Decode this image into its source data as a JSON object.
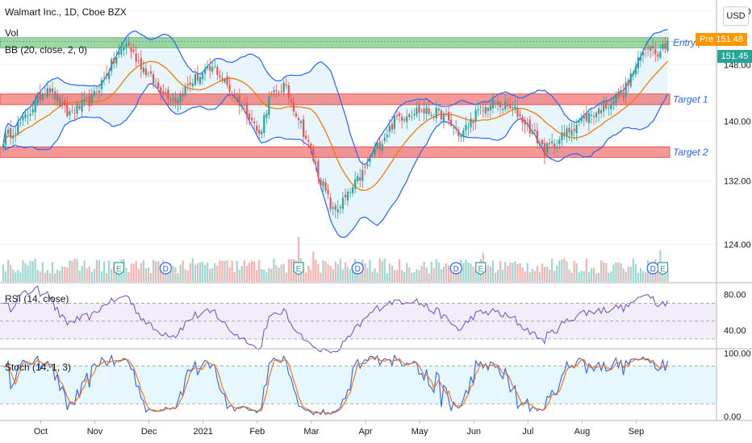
{
  "header": {
    "symbol_line": "Walmart Inc., 1D, Cboe BZX",
    "vol_label": "Vol",
    "bb_label": "BB (20, close, 2, 0)",
    "currency_button": "USD"
  },
  "price_badges": {
    "pre_label": "Pre",
    "pre_value": "151.48",
    "last_value": "151.45"
  },
  "indicators": {
    "rsi_label": "RSI (14, close)",
    "stoch_label": "Stoch (14, 1, 3)"
  },
  "colors": {
    "up": "#26a69a",
    "down": "#ef5350",
    "bb_band": "#2962ff",
    "bb_basis": "#f57c00",
    "bb_fill": "#e3f2fd",
    "rsi_line": "#7e57c2",
    "rsi_band": "#ede7f6",
    "stoch_k": "#2962ff",
    "stoch_d": "#ff6d00",
    "stoch_band": "#e1f5fe",
    "entry_zone": "#81c784",
    "target_zone": "#ef5350",
    "annotation_text": "#2962ff"
  },
  "chart_data": [
    {
      "type": "candlestick",
      "symbol": "Walmart Inc.",
      "interval": "1D",
      "exchange": "Cboe BZX",
      "x_ticks": [
        "Oct",
        "Nov",
        "Dec",
        "2021",
        "Feb",
        "Mar",
        "Apr",
        "May",
        "Jun",
        "Jul",
        "Aug",
        "Sep"
      ],
      "y_ticks": [
        156.0,
        148.0,
        140.0,
        132.0,
        124.0
      ],
      "y_tick_labels": [
        "156.00",
        "148.00",
        "140.00",
        "132.00",
        "124.00"
      ],
      "ylim": [
        119.5,
        157.5
      ],
      "scale": "log",
      "close_anchors": [
        [
          0,
          137.5
        ],
        [
          8,
          140.0
        ],
        [
          18,
          145.0
        ],
        [
          26,
          141.0
        ],
        [
          36,
          143.0
        ],
        [
          44,
          148.0
        ],
        [
          50,
          151.2
        ],
        [
          56,
          148.0
        ],
        [
          62,
          145.0
        ],
        [
          70,
          143.0
        ],
        [
          78,
          146.0
        ],
        [
          86,
          147.5
        ],
        [
          94,
          143.5
        ],
        [
          100,
          141.0
        ],
        [
          104,
          138.0
        ],
        [
          108,
          143.0
        ],
        [
          114,
          145.0
        ],
        [
          120,
          140.5
        ],
        [
          128,
          133.0
        ],
        [
          134,
          128.0
        ],
        [
          140,
          130.0
        ],
        [
          146,
          133.0
        ],
        [
          152,
          136.5
        ],
        [
          160,
          140.5
        ],
        [
          168,
          141.5
        ],
        [
          178,
          141.0
        ],
        [
          186,
          138.0
        ],
        [
          192,
          141.0
        ],
        [
          200,
          142.5
        ],
        [
          208,
          141.5
        ],
        [
          214,
          139.0
        ],
        [
          220,
          136.0
        ],
        [
          226,
          137.5
        ],
        [
          234,
          140.0
        ],
        [
          242,
          141.5
        ],
        [
          252,
          144.0
        ],
        [
          256,
          147.0
        ],
        [
          262,
          151.0
        ],
        [
          266,
          150.0
        ],
        [
          270,
          151.45
        ]
      ],
      "volume_note": "Volume histogram, up-day bars green, down-day bars red",
      "overlays": [
        {
          "name": "BB upper",
          "params": "20, close, 2, 0"
        },
        {
          "name": "BB basis",
          "params": "20, close, 2, 0"
        },
        {
          "name": "BB lower",
          "params": "20, close, 2, 0"
        }
      ],
      "zones": [
        {
          "label": "Entry price",
          "from": 150.5,
          "to": 152.0
        },
        {
          "label": "Target 1",
          "from": 142.3,
          "to": 143.8
        },
        {
          "label": "Target 2",
          "from": 135.1,
          "to": 136.5
        }
      ],
      "event_markers": [
        {
          "x": 47,
          "letter": "E"
        },
        {
          "x": 66,
          "letter": "D"
        },
        {
          "x": 120,
          "letter": "E"
        },
        {
          "x": 144,
          "letter": "D"
        },
        {
          "x": 184,
          "letter": "D"
        },
        {
          "x": 194,
          "letter": "E"
        },
        {
          "x": 264,
          "letter": "D"
        },
        {
          "x": 268,
          "letter": "E"
        }
      ],
      "price_line": 151.45
    },
    {
      "type": "line",
      "name": "RSI (14, close)",
      "y_ticks": [
        "80.00",
        "40.00"
      ],
      "y_tick_values": [
        80,
        40
      ],
      "ylim": [
        20,
        92
      ],
      "band": [
        30,
        70
      ],
      "end_value": 73
    },
    {
      "type": "line",
      "name": "Stoch (14, 1, 3)",
      "y_ticks": [
        "100.00",
        "0.00"
      ],
      "y_tick_values": [
        100,
        0
      ],
      "ylim": [
        -4,
        106
      ],
      "band": [
        20,
        80
      ],
      "end_value": 88
    }
  ]
}
